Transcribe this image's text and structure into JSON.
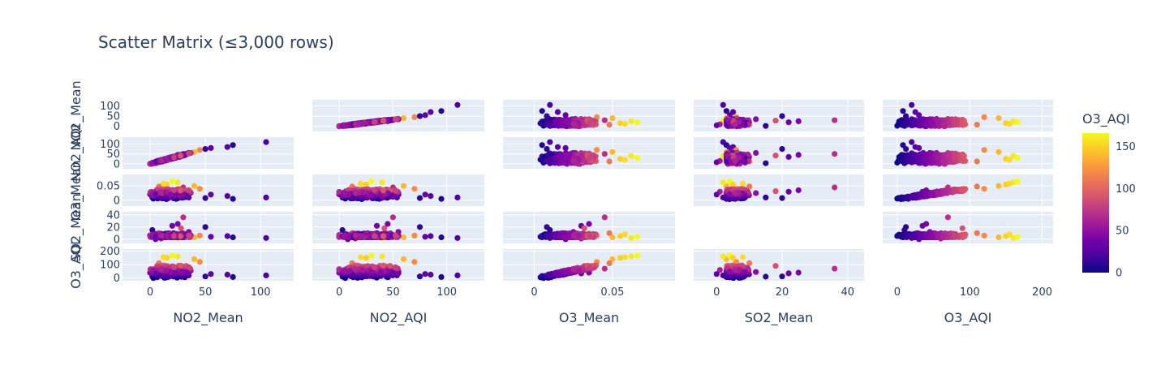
{
  "title": "Scatter Matrix (≤3,000 rows)",
  "chart_data": {
    "type": "scatter",
    "subtype": "scatter-matrix",
    "variables": [
      "NO2_Mean",
      "NO2_AQI",
      "O3_Mean",
      "SO2_Mean",
      "O3_AQI"
    ],
    "color_variable": "O3_AQI",
    "diagonal_visible": false,
    "axes": {
      "NO2_Mean": {
        "range": [
          -25,
          130
        ],
        "ticks": [
          0,
          50,
          100
        ],
        "tick_labels": [
          "0",
          "50",
          "100"
        ],
        "row_ticks": [
          0,
          50,
          100
        ],
        "row_tick_labels": [
          "0",
          "50",
          "100"
        ]
      },
      "NO2_AQI": {
        "range": [
          -25,
          135
        ],
        "ticks": [
          0,
          50,
          100
        ],
        "tick_labels": [
          "0",
          "50",
          "100"
        ],
        "row_ticks": [
          0,
          50,
          100
        ],
        "row_tick_labels": [
          "0",
          "50",
          "100"
        ]
      },
      "O3_Mean": {
        "range": [
          -0.02,
          0.09
        ],
        "ticks": [
          0,
          0.05
        ],
        "tick_labels": [
          "0",
          "0.05"
        ],
        "row_ticks": [
          0,
          0.05
        ],
        "row_tick_labels": [
          "0",
          "0.05"
        ]
      },
      "SO2_Mean": {
        "range": [
          -7,
          45
        ],
        "ticks": [
          0,
          20,
          40
        ],
        "tick_labels": [
          "0",
          "20",
          "40"
        ],
        "row_ticks": [
          0,
          20,
          40
        ],
        "row_tick_labels": [
          "0",
          "20",
          "40"
        ]
      },
      "O3_AQI": {
        "range": [
          -20,
          215
        ],
        "ticks": [
          0,
          100,
          200
        ],
        "tick_labels": [
          "0",
          "100",
          "200"
        ],
        "row_ticks": [
          0,
          100,
          200
        ],
        "row_tick_labels": [
          "0",
          "100",
          "200"
        ]
      }
    },
    "colorbar": {
      "title": "O3_AQI",
      "range": [
        0,
        166
      ],
      "ticks": [
        0,
        50,
        100,
        150
      ],
      "tick_labels": [
        "0",
        "50",
        "100",
        "150"
      ],
      "colorscale": [
        "#0d0887",
        "#46039f",
        "#7201a8",
        "#9c179e",
        "#bd3786",
        "#d8576b",
        "#ed7953",
        "#fb9f3a",
        "#fdca26",
        "#f0f921"
      ]
    },
    "grid": true,
    "plot_background": "#e5ecf6",
    "sample_points": [
      {
        "NO2_Mean": 105,
        "NO2_AQI": 110,
        "O3_Mean": 0.01,
        "SO2_Mean": 2,
        "O3_AQI": 20
      },
      {
        "NO2_Mean": 70,
        "NO2_AQI": 85,
        "O3_Mean": 0.015,
        "SO2_Mean": 5,
        "O3_AQI": 25
      },
      {
        "NO2_Mean": 75,
        "NO2_AQI": 95,
        "O3_Mean": 0.005,
        "SO2_Mean": 3,
        "O3_AQI": 8
      },
      {
        "NO2_Mean": 55,
        "NO2_AQI": 80,
        "O3_Mean": 0.02,
        "SO2_Mean": 4,
        "O3_AQI": 30
      },
      {
        "NO2_Mean": 45,
        "NO2_AQI": 70,
        "O3_Mean": 0.04,
        "SO2_Mean": 6,
        "O3_AQI": 120
      },
      {
        "NO2_Mean": 40,
        "NO2_AQI": 60,
        "O3_Mean": 0.05,
        "SO2_Mean": 3,
        "O3_AQI": 140
      },
      {
        "NO2_Mean": 25,
        "NO2_AQI": 40,
        "O3_Mean": 0.062,
        "SO2_Mean": 2,
        "O3_AQI": 160
      },
      {
        "NO2_Mean": 20,
        "NO2_AQI": 30,
        "O3_Mean": 0.066,
        "SO2_Mean": 4,
        "O3_AQI": 166
      },
      {
        "NO2_Mean": 15,
        "NO2_AQI": 25,
        "O3_Mean": 0.055,
        "SO2_Mean": 5,
        "O3_AQI": 150
      },
      {
        "NO2_Mean": 10,
        "NO2_AQI": 15,
        "O3_Mean": 0.03,
        "SO2_Mean": 1,
        "O3_AQI": 60
      },
      {
        "NO2_Mean": 5,
        "NO2_AQI": 8,
        "O3_Mean": 0.02,
        "SO2_Mean": 0,
        "O3_AQI": 30
      },
      {
        "NO2_Mean": 30,
        "NO2_AQI": 50,
        "O3_Mean": 0.045,
        "SO2_Mean": 36,
        "O3_AQI": 70
      },
      {
        "NO2_Mean": 25,
        "NO2_AQI": 45,
        "O3_Mean": 0.035,
        "SO2_Mean": 25,
        "O3_AQI": 40
      },
      {
        "NO2_Mean": 20,
        "NO2_AQI": 35,
        "O3_Mean": 0.03,
        "SO2_Mean": 22,
        "O3_AQI": 35
      },
      {
        "NO2_Mean": 2,
        "NO2_AQI": 3,
        "O3_Mean": 0.01,
        "SO2_Mean": 15,
        "O3_AQI": 10
      },
      {
        "NO2_Mean": 35,
        "NO2_AQI": 55,
        "O3_Mean": 0.025,
        "SO2_Mean": 12,
        "O3_AQI": 45
      },
      {
        "NO2_Mean": 12,
        "NO2_AQI": 20,
        "O3_Mean": 0.058,
        "SO2_Mean": 8,
        "O3_AQI": 155
      },
      {
        "NO2_Mean": 8,
        "NO2_AQI": 12,
        "O3_Mean": 0.048,
        "SO2_Mean": 10,
        "O3_AQI": 110
      },
      {
        "NO2_Mean": 50,
        "NO2_AQI": 75,
        "O3_Mean": 0.008,
        "SO2_Mean": 20,
        "O3_AQI": 12
      },
      {
        "NO2_Mean": 28,
        "NO2_AQI": 42,
        "O3_Mean": 0.032,
        "SO2_Mean": 18,
        "O3_AQI": 90
      }
    ]
  }
}
